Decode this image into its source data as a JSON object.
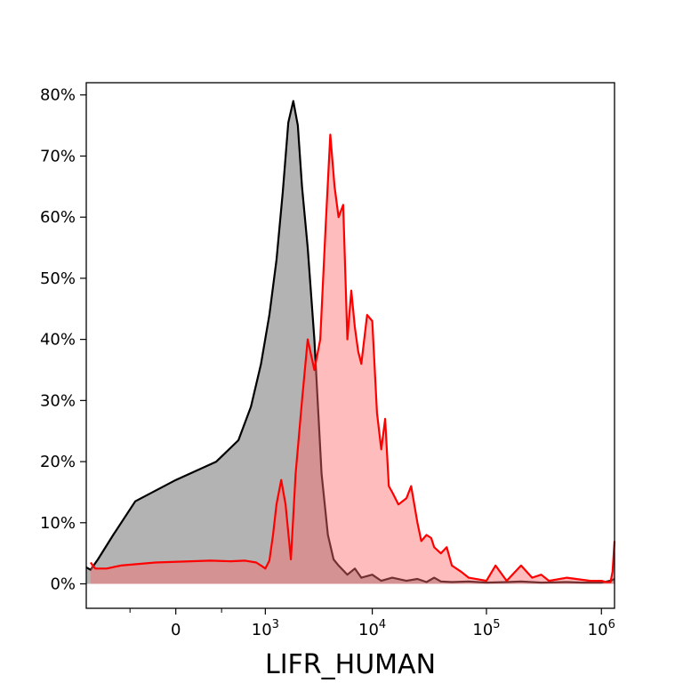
{
  "chart_data": {
    "type": "area",
    "title": "",
    "xlabel": "LIFR_HUMAN",
    "ylabel": "",
    "x_scale": "biexponential",
    "xlim": [
      -1000,
      1300000
    ],
    "ylim": [
      -0.04,
      0.82
    ],
    "grid": false,
    "legend": "none",
    "x_ticks": [
      {
        "value": 0,
        "base": "0",
        "exp": ""
      },
      {
        "value": 1000,
        "base": "10",
        "exp": "3"
      },
      {
        "value": 10000,
        "base": "10",
        "exp": "4"
      },
      {
        "value": 100000,
        "base": "10",
        "exp": "5"
      },
      {
        "value": 1000000,
        "base": "10",
        "exp": "6"
      }
    ],
    "x_minor_ticks": [
      -300,
      300
    ],
    "y_ticks": [
      {
        "value": 0.0,
        "label": "0%"
      },
      {
        "value": 0.1,
        "label": "10%"
      },
      {
        "value": 0.2,
        "label": "20%"
      },
      {
        "value": 0.3,
        "label": "30%"
      },
      {
        "value": 0.4,
        "label": "40%"
      },
      {
        "value": 0.5,
        "label": "50%"
      },
      {
        "value": 0.6,
        "label": "60%"
      },
      {
        "value": 0.7,
        "label": "70%"
      },
      {
        "value": 0.8,
        "label": "80%"
      }
    ],
    "series": [
      {
        "line_color": "#000000",
        "fill_color": "#808080",
        "fill_opacity": 0.6,
        "x": [
          -1000,
          -900,
          -750,
          -500,
          -250,
          0,
          250,
          500,
          700,
          900,
          1100,
          1300,
          1500,
          1700,
          1900,
          2100,
          2300,
          2600,
          3000,
          3500,
          4000,
          4500,
          5000,
          6000,
          7000,
          8000,
          10000,
          12000,
          15000,
          20000,
          25000,
          30000,
          35000,
          40000,
          50000,
          70000,
          100000,
          150000,
          200000,
          300000,
          500000,
          700000,
          1000000,
          1200000,
          1300000
        ],
        "y": [
          0.027,
          0.023,
          0.04,
          0.08,
          0.135,
          0.17,
          0.2,
          0.235,
          0.29,
          0.36,
          0.44,
          0.53,
          0.64,
          0.755,
          0.79,
          0.75,
          0.65,
          0.55,
          0.4,
          0.18,
          0.08,
          0.04,
          0.03,
          0.015,
          0.025,
          0.01,
          0.015,
          0.005,
          0.01,
          0.005,
          0.008,
          0.003,
          0.01,
          0.004,
          0.003,
          0.004,
          0.002,
          0.003,
          0.004,
          0.002,
          0.003,
          0.002,
          0.002,
          0.005,
          0.008
        ]
      },
      {
        "line_color": "#ff0000",
        "fill_color": "#ff6b6b",
        "fill_opacity": 0.45,
        "x": [
          -900,
          -800,
          -600,
          -400,
          -100,
          200,
          400,
          600,
          800,
          900,
          1000,
          1100,
          1200,
          1300,
          1450,
          1600,
          1800,
          2000,
          2300,
          2600,
          3000,
          3400,
          3800,
          4200,
          4600,
          5000,
          5500,
          6000,
          6500,
          7000,
          7500,
          8000,
          9000,
          10000,
          11000,
          12000,
          13000,
          14000,
          15000,
          17000,
          20000,
          22000,
          25000,
          27000,
          30000,
          33000,
          35000,
          40000,
          45000,
          50000,
          60000,
          70000,
          100000,
          120000,
          150000,
          200000,
          250000,
          300000,
          350000,
          500000,
          800000,
          1000000,
          1100000,
          1200000,
          1250000,
          1300000
        ],
        "y": [
          0.035,
          0.025,
          0.025,
          0.03,
          0.035,
          0.038,
          0.037,
          0.038,
          0.035,
          0.03,
          0.025,
          0.038,
          0.08,
          0.13,
          0.17,
          0.13,
          0.04,
          0.18,
          0.3,
          0.4,
          0.35,
          0.4,
          0.58,
          0.735,
          0.65,
          0.6,
          0.62,
          0.4,
          0.48,
          0.42,
          0.38,
          0.36,
          0.44,
          0.43,
          0.28,
          0.22,
          0.27,
          0.16,
          0.15,
          0.13,
          0.14,
          0.16,
          0.1,
          0.07,
          0.08,
          0.075,
          0.06,
          0.05,
          0.06,
          0.03,
          0.02,
          0.01,
          0.005,
          0.03,
          0.005,
          0.03,
          0.01,
          0.015,
          0.005,
          0.01,
          0.005,
          0.005,
          0.003,
          0.003,
          0.02,
          0.07
        ]
      }
    ]
  }
}
